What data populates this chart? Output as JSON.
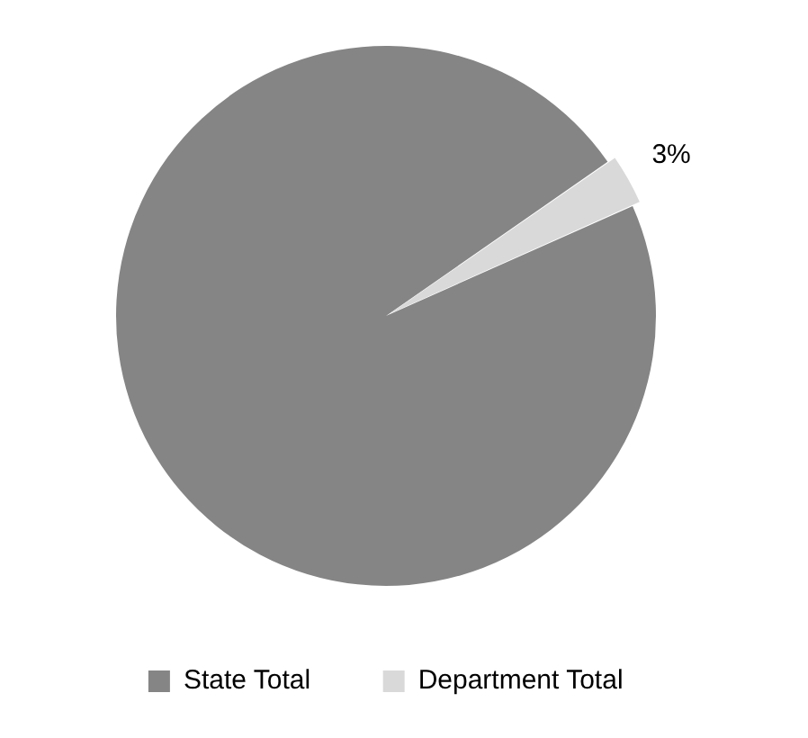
{
  "chart_data": {
    "type": "pie",
    "categories": [
      "State Total",
      "Department Total"
    ],
    "values": [
      97,
      3
    ],
    "colors": [
      "#858585",
      "#d9d9d9"
    ],
    "value_labels": [
      null,
      "3%"
    ],
    "legend": "bottom"
  }
}
